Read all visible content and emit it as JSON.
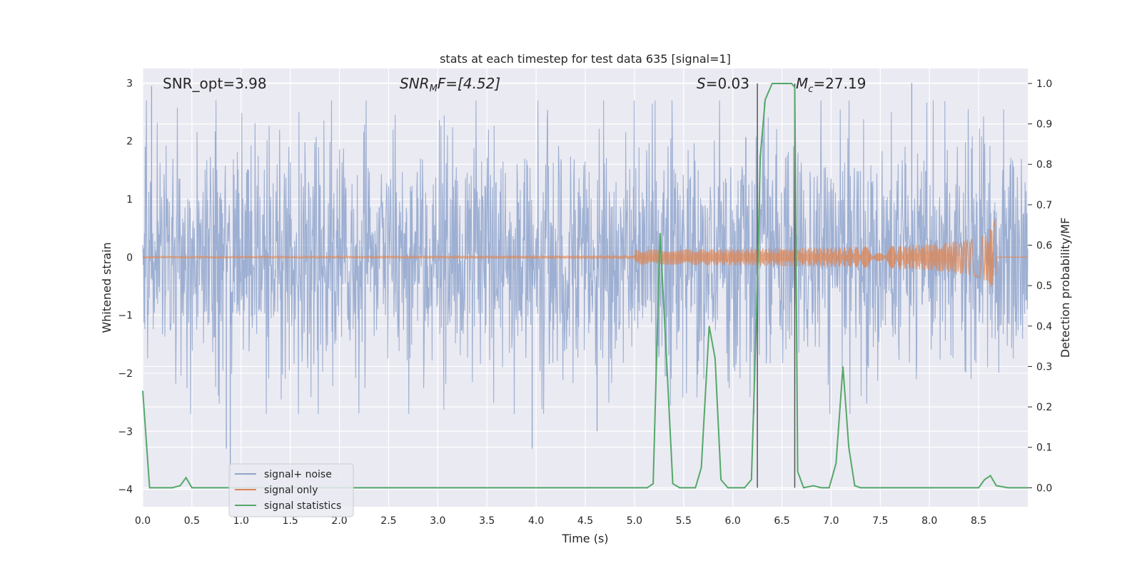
{
  "chart_data": {
    "type": "line",
    "title": "stats at each timestep for test data 635 [signal=1]",
    "xlabel": "Time (s)",
    "ylabel": "Whitened strain",
    "ylabel_right": "Detection probability/MF",
    "xlim": [
      0.0,
      9.0
    ],
    "ylim": [
      -4.3,
      3.25
    ],
    "ylim_right": [
      -0.047,
      1.037
    ],
    "x_ticks": [
      "0.0",
      "0.5",
      "1.0",
      "1.5",
      "2.0",
      "2.5",
      "3.0",
      "3.5",
      "4.0",
      "4.5",
      "5.0",
      "5.5",
      "6.0",
      "6.5",
      "7.0",
      "7.5",
      "8.0",
      "8.5"
    ],
    "y_ticks": [
      "3",
      "2",
      "1",
      "0",
      "−1",
      "−2",
      "−3",
      "−4"
    ],
    "y_ticks_right": [
      "1.0",
      "0.9",
      "0.8",
      "0.7",
      "0.6",
      "0.5",
      "0.4",
      "0.3",
      "0.2",
      "0.1",
      "0.0"
    ],
    "grid": true,
    "legend_position": "lower-left",
    "annotations": {
      "snr_opt": "SNR_opt=3.98",
      "snr_mf_base": "SNR",
      "snr_mf_sub": "M",
      "snr_mf_rest": "F=[4.52]",
      "s_italic": "S",
      "s_value": "=0.03",
      "mc_base": "M",
      "mc_sub": "c",
      "mc_value": "=27.19"
    },
    "vertical_markers_x": [
      6.25,
      6.63
    ],
    "series": [
      {
        "name": "signal+ noise",
        "axis": "left",
        "color": "#8fa4cc",
        "envelope_note": "dense whitened noise, roughly within ±2 with peaks to ±3",
        "peaks_x": [
          0.09,
          0.85,
          0.89,
          3.96,
          4.62,
          7.82
        ],
        "peaks_y": [
          2.95,
          -3.3,
          -3.85,
          -3.3,
          -3.0,
          3.0
        ]
      },
      {
        "name": "signal only",
        "axis": "left",
        "color": "#dd8452",
        "chirp_end_x": 8.68,
        "chirp_peak_amplitude": 0.8
      },
      {
        "name": "signal statistics",
        "axis": "right",
        "color": "#55a868",
        "x": [
          0.0,
          0.07,
          0.15,
          0.3,
          0.38,
          0.44,
          0.5,
          1.0,
          2.0,
          3.0,
          4.0,
          5.0,
          5.13,
          5.19,
          5.26,
          5.33,
          5.39,
          5.46,
          5.62,
          5.68,
          5.76,
          5.82,
          5.88,
          5.95,
          6.12,
          6.19,
          6.25,
          6.28,
          6.33,
          6.4,
          6.52,
          6.6,
          6.63,
          6.66,
          6.72,
          6.82,
          6.9,
          6.98,
          7.05,
          7.12,
          7.18,
          7.24,
          7.3,
          7.38,
          8.0,
          8.5,
          8.56,
          8.62,
          8.68,
          8.8,
          9.0
        ],
        "values": [
          0.24,
          0.0,
          0.0,
          0.0,
          0.005,
          0.025,
          0.0,
          0.0,
          0.0,
          0.0,
          0.0,
          0.0,
          0.0,
          0.01,
          0.63,
          0.3,
          0.01,
          0.0,
          0.0,
          0.05,
          0.4,
          0.32,
          0.02,
          0.0,
          0.0,
          0.02,
          0.5,
          0.82,
          0.96,
          1.0,
          1.0,
          1.0,
          0.99,
          0.04,
          0.0,
          0.005,
          0.0,
          0.0,
          0.06,
          0.3,
          0.1,
          0.005,
          0.0,
          0.0,
          0.0,
          0.0,
          0.02,
          0.03,
          0.005,
          0.0,
          0.0
        ]
      }
    ]
  }
}
